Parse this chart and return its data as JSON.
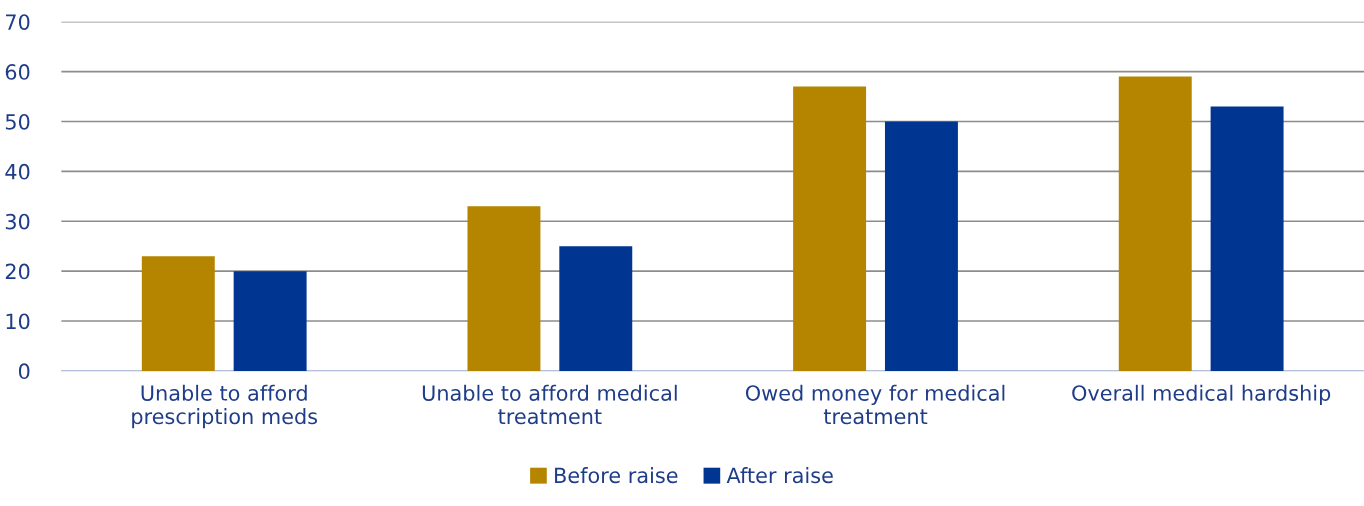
{
  "chart_data": {
    "type": "bar",
    "categories": [
      "Unable to afford prescription meds",
      "Unable to afford medical treatment",
      "Owed money for medical treatment",
      "Overall medical hardship"
    ],
    "series": [
      {
        "name": "Before raise",
        "color": "#b58500",
        "values": [
          23,
          33,
          57,
          59
        ]
      },
      {
        "name": "After raise",
        "color": "#003591",
        "values": [
          20,
          25,
          50,
          53
        ]
      }
    ],
    "ylim": [
      0,
      70
    ],
    "yticks": [
      0,
      10,
      20,
      30,
      40,
      50,
      60,
      70
    ],
    "grid": "y",
    "legend": "bottom"
  }
}
